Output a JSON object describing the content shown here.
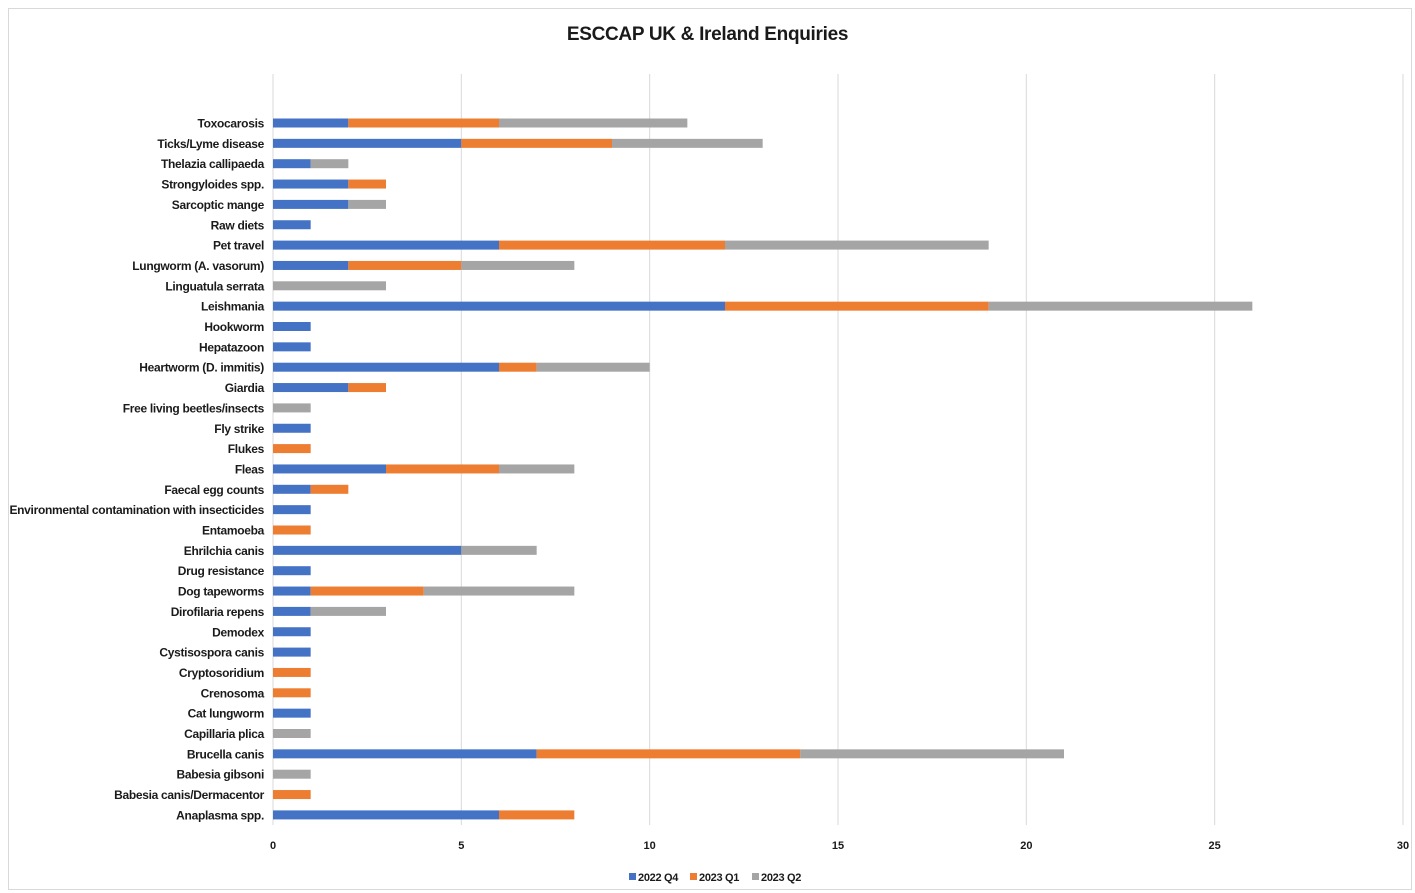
{
  "chart_data": {
    "type": "bar",
    "orientation": "horizontal",
    "stacked": true,
    "title": "ESCCAP UK & Ireland Enquiries",
    "xlabel": "",
    "ylabel": "",
    "xlim": [
      0,
      30
    ],
    "x_ticks": [
      "0",
      "5",
      "10",
      "15",
      "20",
      "25",
      "30"
    ],
    "grid": "vertical",
    "legend_position": "bottom",
    "categories": [
      "Toxocarosis",
      "Ticks/Lyme disease",
      "Thelazia callipaeda",
      "Strongyloides spp.",
      "Sarcoptic mange",
      "Raw diets",
      "Pet travel",
      "Lungworm (A. vasorum)",
      "Linguatula serrata",
      "Leishmania",
      "Hookworm",
      "Hepatazoon",
      "Heartworm (D. immitis)",
      "Giardia",
      "Free living beetles/insects",
      "Fly strike",
      "Flukes",
      "Fleas",
      "Faecal egg counts",
      "Environmental contamination with insecticides",
      "Entamoeba",
      "Ehrilchia canis",
      "Drug resistance",
      "Dog tapeworms",
      "Dirofilaria repens",
      "Demodex",
      "Cystisospora canis",
      "Cryptosoridium",
      "Crenosoma",
      "Cat lungworm",
      "Capillaria plica",
      "Brucella canis",
      "Babesia gibsoni",
      "Babesia canis/Dermacentor",
      "Anaplasma spp."
    ],
    "series": [
      {
        "name": "2022 Q4",
        "color": "#4472c4",
        "values": [
          2,
          5,
          1,
          2,
          2,
          1,
          6,
          2,
          0,
          12,
          1,
          1,
          6,
          2,
          0,
          1,
          0,
          3,
          1,
          1,
          0,
          5,
          1,
          1,
          1,
          1,
          1,
          0,
          0,
          1,
          0,
          7,
          0,
          0,
          6
        ]
      },
      {
        "name": "2023 Q1",
        "color": "#ed7d31",
        "values": [
          4,
          4,
          0,
          1,
          0,
          0,
          6,
          3,
          0,
          7,
          0,
          0,
          1,
          1,
          0,
          0,
          1,
          3,
          1,
          0,
          1,
          0,
          0,
          3,
          0,
          0,
          0,
          1,
          1,
          0,
          0,
          7,
          0,
          1,
          2
        ]
      },
      {
        "name": "2023 Q2",
        "color": "#a5a5a5",
        "values": [
          5,
          4,
          1,
          0,
          1,
          0,
          7,
          3,
          3,
          7,
          0,
          0,
          3,
          0,
          1,
          0,
          0,
          2,
          0,
          0,
          0,
          2,
          0,
          4,
          2,
          0,
          0,
          0,
          0,
          0,
          1,
          7,
          1,
          0,
          0
        ]
      }
    ]
  }
}
